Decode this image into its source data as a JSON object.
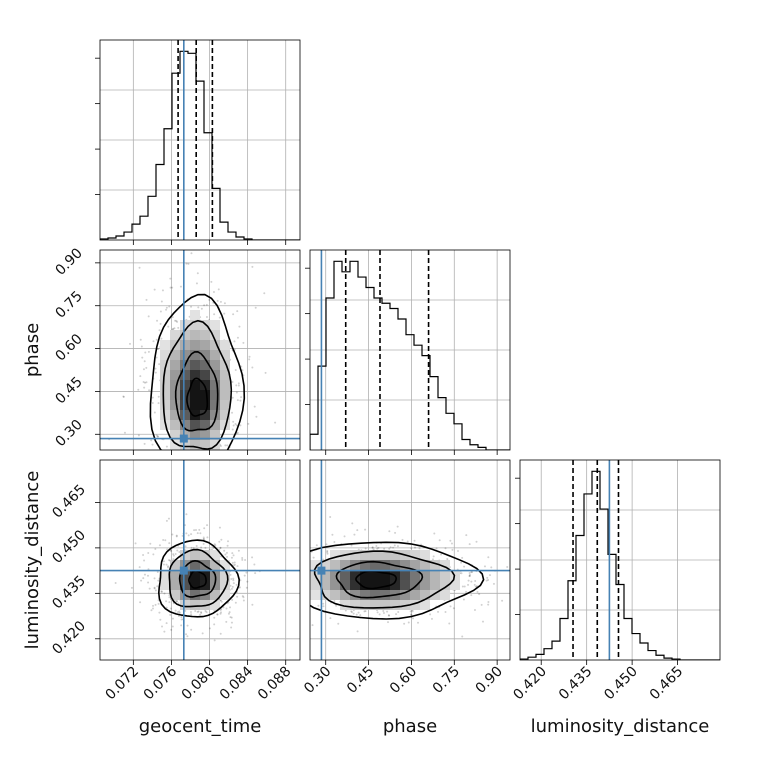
{
  "chart_data": {
    "type": "corner",
    "parameters": [
      "geocent_time",
      "phase",
      "luminosity_distance"
    ],
    "truths": {
      "geocent_time": 0.0773,
      "phase": 0.285,
      "luminosity_distance": 0.4425
    },
    "quantiles": {
      "geocent_time": [
        0.0767,
        0.0786,
        0.0803
      ],
      "phase": [
        0.37,
        0.49,
        0.66
      ],
      "luminosity_distance": [
        0.4305,
        0.4385,
        0.4455
      ]
    },
    "ranges": {
      "geocent_time": [
        0.0685,
        0.0895
      ],
      "phase": [
        0.245,
        0.945
      ],
      "luminosity_distance": [
        0.413,
        0.479
      ]
    },
    "ticks": {
      "geocent_time": [
        "0.072",
        "0.076",
        "0.080",
        "0.084",
        "0.088"
      ],
      "phase": [
        "0.30",
        "0.45",
        "0.60",
        "0.75",
        "0.90"
      ],
      "luminosity_distance": [
        "0.420",
        "0.435",
        "0.450",
        "0.465"
      ]
    },
    "histograms": {
      "geocent_time": {
        "edges_start": 0.0685,
        "bin_width": 0.00084,
        "counts": [
          0.5,
          1,
          2,
          4,
          8,
          12,
          22,
          38,
          56,
          84,
          95,
          94,
          80,
          54,
          26,
          9,
          4,
          1.5,
          0.5,
          0,
          0,
          0,
          0,
          0,
          0
        ]
      },
      "phase": {
        "edges_start": 0.245,
        "bin_width": 0.028,
        "counts": [
          6,
          32,
          58,
          72,
          68,
          72,
          66,
          62,
          58,
          56,
          54,
          50,
          44,
          40,
          36,
          28,
          20,
          14,
          10,
          4,
          2,
          1,
          0,
          0,
          0
        ]
      },
      "luminosity_distance": {
        "edges_start": 0.413,
        "bin_width": 0.00264,
        "counts": [
          0.5,
          1.5,
          3,
          6,
          10,
          22,
          42,
          66,
          88,
          100,
          80,
          56,
          40,
          22,
          14,
          9,
          5,
          2.5,
          1,
          0.5,
          0,
          0,
          0,
          0,
          0
        ]
      }
    },
    "density_2d": {
      "phase_vs_geocent_time": {
        "mean": [
          0.0786,
          0.47
        ],
        "sd": [
          0.0021,
          0.13
        ],
        "peak": [
          0.0788,
          0.4
        ]
      },
      "luminosity_distance_vs_geocent_time": {
        "mean": [
          0.0786,
          0.4395
        ],
        "sd": [
          0.0018,
          0.0055
        ],
        "peak": [
          0.0788,
          0.4395
        ]
      },
      "luminosity_distance_vs_phase": {
        "mean": [
          0.5,
          0.4395
        ],
        "sd": [
          0.14,
          0.0055
        ],
        "peak": [
          0.46,
          0.4395
        ]
      }
    },
    "grid": true,
    "truth_color": "#4682b4",
    "line_color": "#000000"
  }
}
